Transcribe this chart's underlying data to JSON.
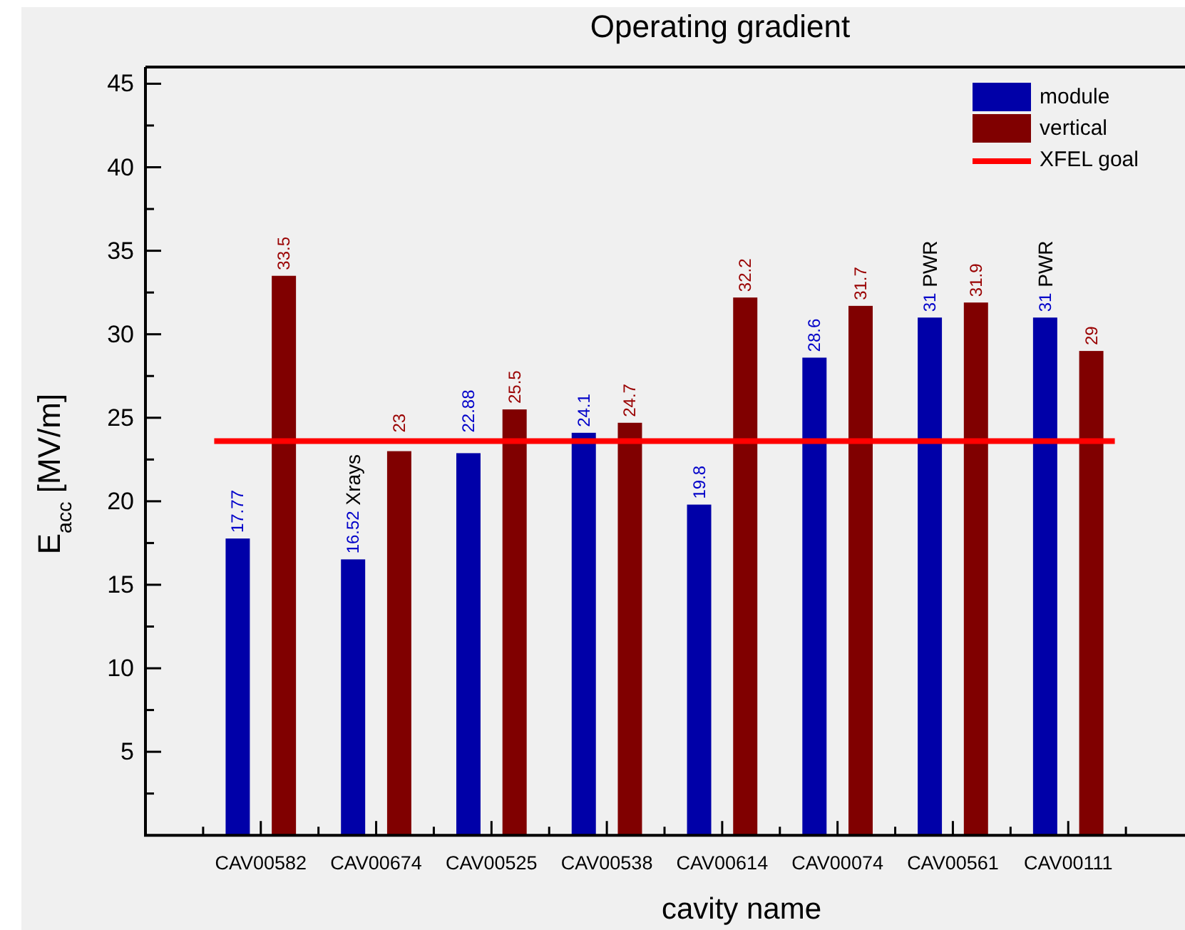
{
  "chart_data": {
    "type": "bar",
    "title": "Operating gradient",
    "xlabel": "cavity name",
    "ylabel": "E$_{acc}$ [MV/m]",
    "categories": [
      "CAV00582",
      "CAV00674",
      "CAV00525",
      "CAV00538",
      "CAV00614",
      "CAV00074",
      "CAV00561",
      "CAV00111"
    ],
    "series": [
      {
        "name": "module",
        "color": "#0000a8",
        "values": [
          17.77,
          16.52,
          22.88,
          24.1,
          19.8,
          28.6,
          31,
          31
        ],
        "value_labels": [
          "17.77",
          "16.52 Xrays",
          "22.88",
          "24.1",
          "19.8",
          "28.6",
          "31 PWR",
          "31 PWR"
        ]
      },
      {
        "name": "vertical",
        "color": "#800000",
        "values": [
          33.5,
          23,
          25.5,
          24.7,
          32.2,
          31.7,
          31.9,
          29
        ],
        "value_labels": [
          "33.5",
          "23",
          "25.5",
          "24.7",
          "32.2",
          "31.7",
          "31.9",
          "29"
        ]
      }
    ],
    "ylim": [
      0,
      46
    ],
    "yticks": [
      {
        "value": 2.5,
        "label": null
      },
      5,
      {
        "value": 7.5,
        "label": null
      },
      10,
      {
        "value": 12.5,
        "label": null
      },
      15,
      {
        "value": 17.5,
        "label": null
      },
      20,
      {
        "value": 22.5,
        "label": null
      },
      25,
      {
        "value": 27.5,
        "label": null
      },
      30,
      {
        "value": 32.5,
        "label": null
      },
      35,
      {
        "value": 37.5,
        "label": null
      },
      40,
      {
        "value": 42.5,
        "label": null
      },
      45
    ],
    "ref_lines": [
      {
        "axis": "y",
        "value": 23.6,
        "label": "XFEL goal",
        "color": "#ff0000"
      }
    ],
    "legend": "top right"
  }
}
